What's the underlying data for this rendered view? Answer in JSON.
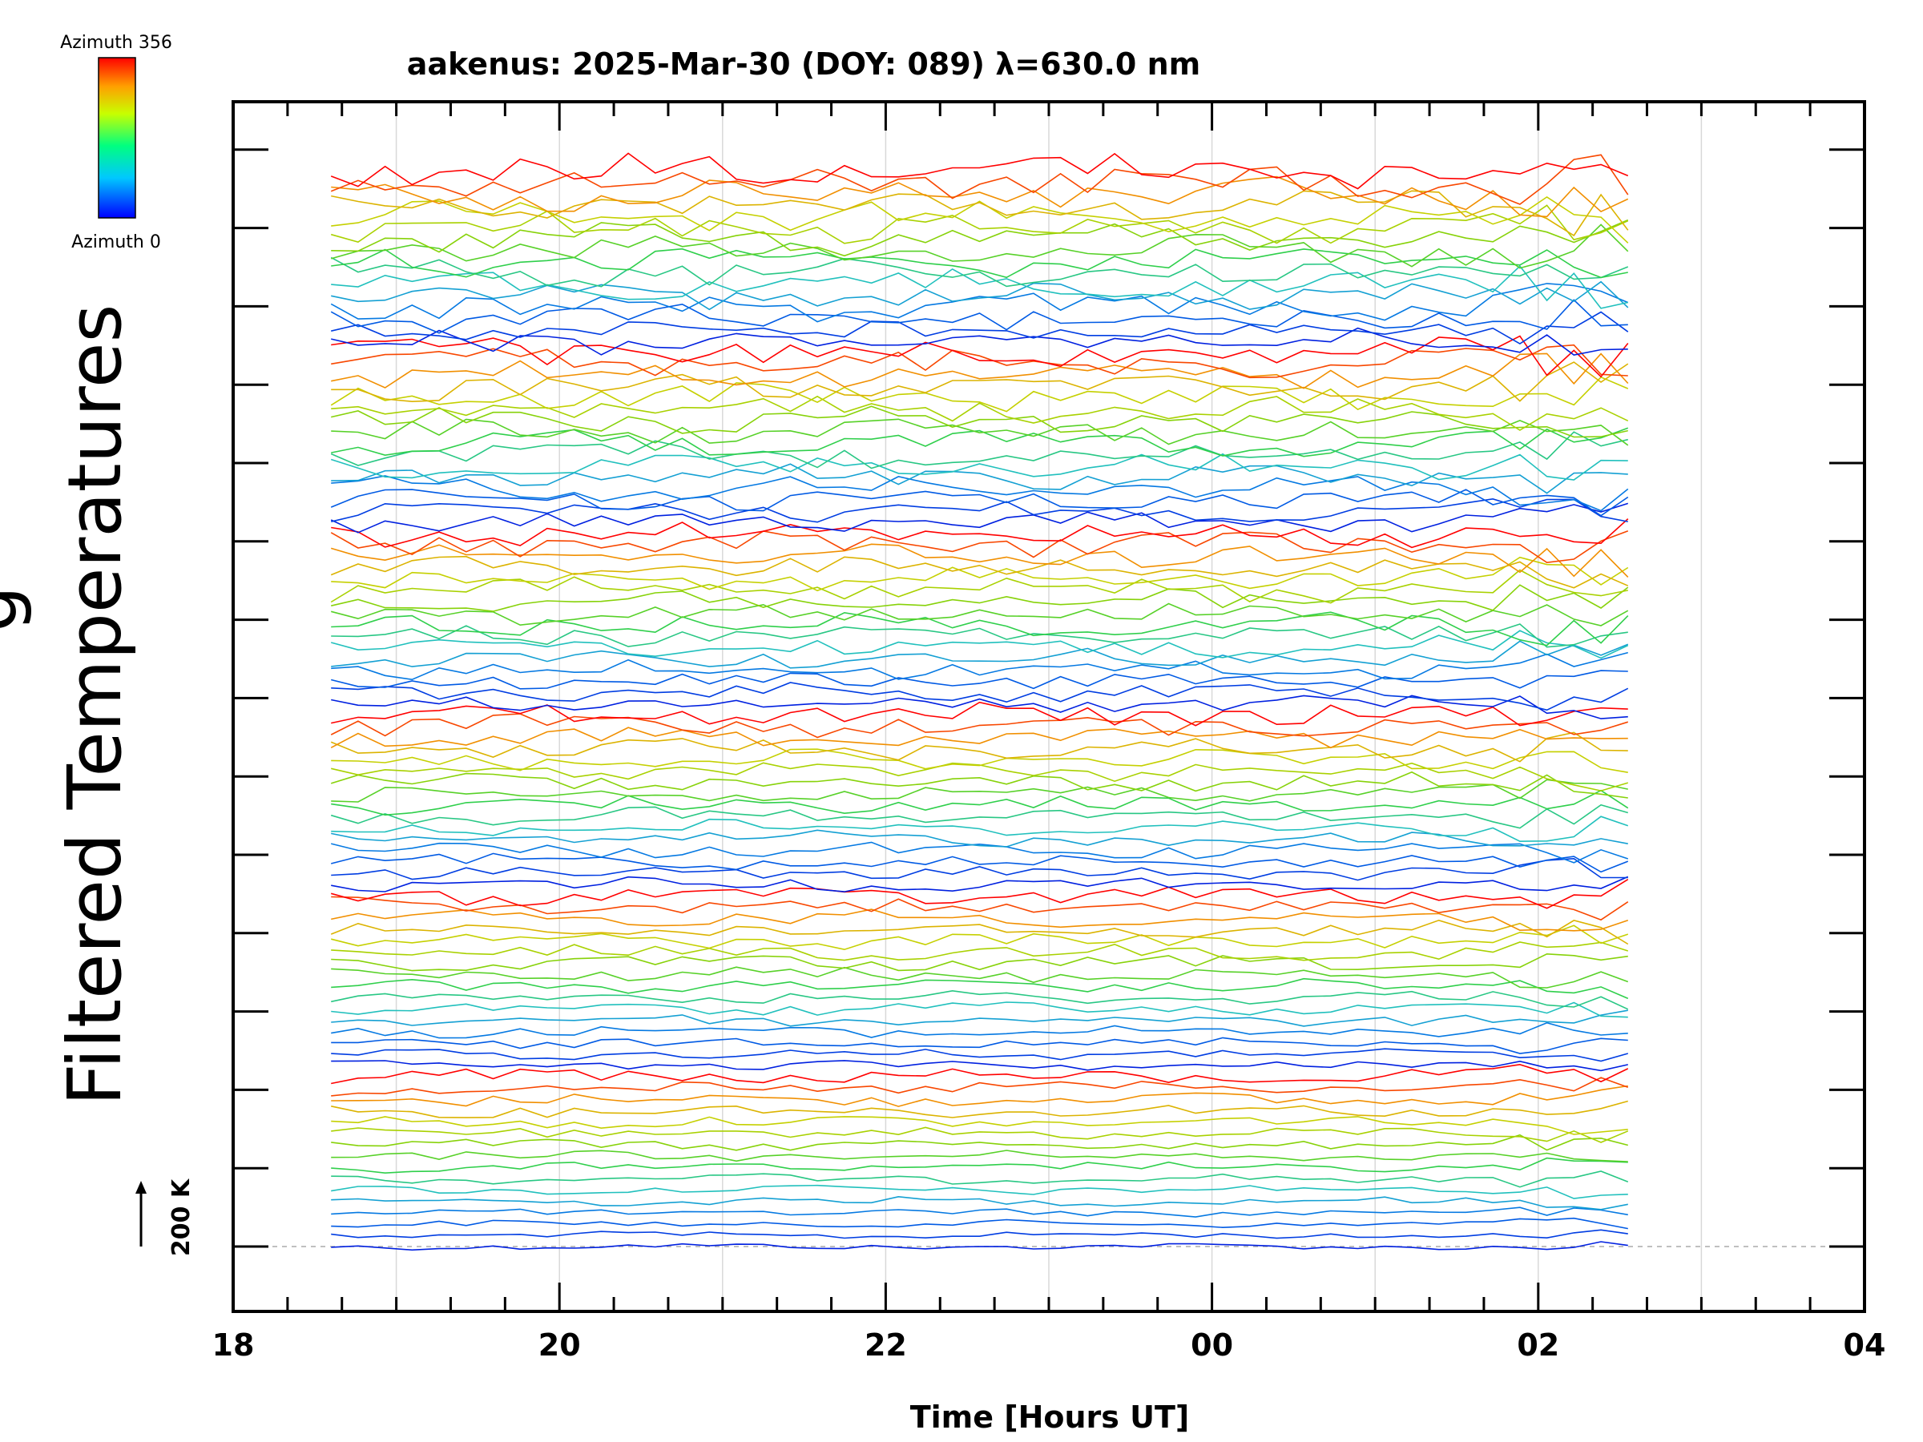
{
  "chart_data": {
    "type": "line",
    "title": "aakenus: 2025-Mar-30 (DOY: 089) λ=630.0 nm",
    "xlabel": "Time [Hours UT]",
    "ylabel": "Filtered Temperatures",
    "ylabel_clipped": "g",
    "x_ticks": [
      "18",
      "20",
      "22",
      "00",
      "02",
      "04"
    ],
    "x_range_hours": [
      18,
      28
    ],
    "data_range_hours": [
      18.6,
      26.55
    ],
    "colorbar": {
      "top_label": "Azimuth 356",
      "bottom_label": "Azimuth 0",
      "azimuth_range": [
        0,
        356
      ]
    },
    "scale_bar_label": "200 K",
    "stack_spacing_K": 130,
    "n_traces": 96,
    "sample_interval_minutes": 10,
    "groups": 6,
    "traces_per_group": 16,
    "colors": {
      "red": "#ff0000",
      "yellow": "#c8d000",
      "green": "#30d040",
      "cyan": "#20c0c0",
      "blue": "#0020e0"
    }
  }
}
